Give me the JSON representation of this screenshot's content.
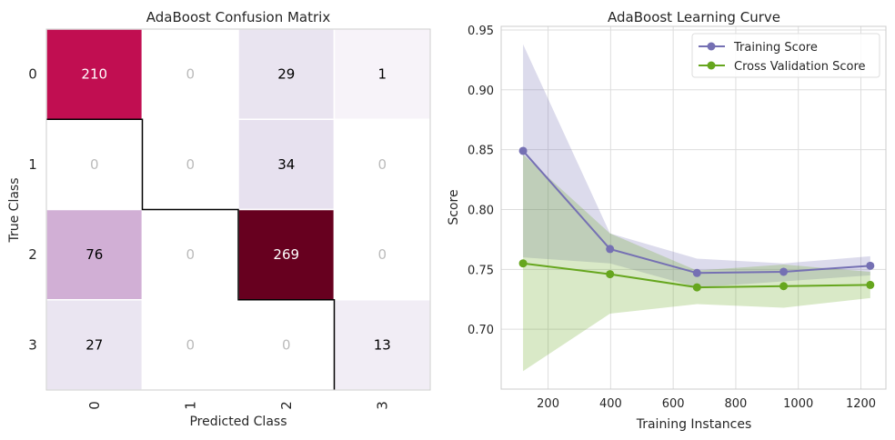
{
  "charts": [
    {
      "chart_data": {
        "type": "heatmap",
        "title": "AdaBoost Confusion Matrix",
        "xlabel": "Predicted Class",
        "ylabel": "True Class",
        "x_categories": [
          "0",
          "1",
          "2",
          "3"
        ],
        "y_categories": [
          "0",
          "1",
          "2",
          "3"
        ],
        "values": [
          [
            210,
            0,
            29,
            1
          ],
          [
            0,
            0,
            34,
            0
          ],
          [
            76,
            0,
            269,
            0
          ],
          [
            27,
            0,
            0,
            13
          ]
        ],
        "colormap": "PuRd",
        "diagonal_outline": true
      }
    },
    {
      "chart_data": {
        "type": "line",
        "title": "AdaBoost Learning Curve",
        "xlabel": "Training Instances",
        "ylabel": "Score",
        "xlim": [
          50,
          1280
        ],
        "ylim": [
          0.65,
          0.953
        ],
        "xticks": [
          "200",
          "400",
          "600",
          "800",
          "1000",
          "1200"
        ],
        "yticks": [
          "0.70",
          "0.75",
          "0.80",
          "0.85",
          "0.90",
          "0.95"
        ],
        "grid": true,
        "legend_position": "upper-right",
        "x": [
          120,
          398,
          676,
          953,
          1230
        ],
        "series": [
          {
            "name": "Training Score",
            "color": "#7570b3",
            "values": [
              0.849,
              0.767,
              0.747,
              0.748,
              0.753
            ],
            "band_lower": [
              0.76,
              0.755,
              0.735,
              0.74,
              0.745
            ],
            "band_upper": [
              0.938,
              0.78,
              0.759,
              0.755,
              0.761
            ]
          },
          {
            "name": "Cross Validation Score",
            "color": "#66a61e",
            "values": [
              0.755,
              0.746,
              0.735,
              0.736,
              0.737
            ],
            "band_lower": [
              0.665,
              0.713,
              0.721,
              0.718,
              0.726
            ],
            "band_upper": [
              0.846,
              0.78,
              0.749,
              0.754,
              0.748
            ]
          }
        ]
      }
    }
  ]
}
